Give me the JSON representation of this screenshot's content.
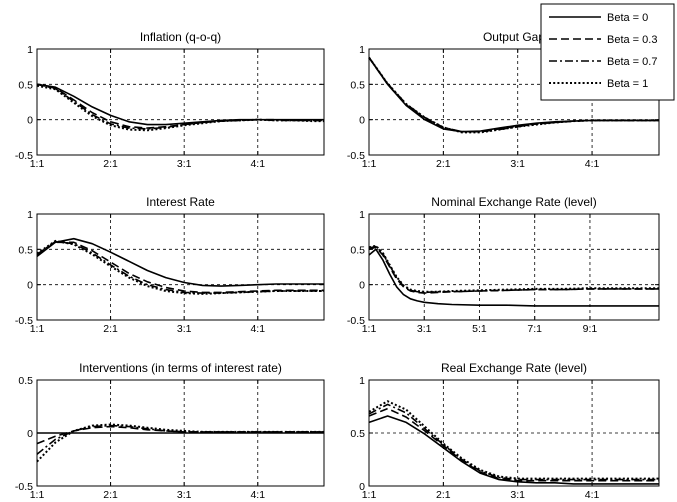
{
  "legend": {
    "placement": "top-right",
    "entries": [
      {
        "name": "Beta = 0",
        "dash": "solid"
      },
      {
        "name": "Beta = 0.3",
        "dash": "dashed"
      },
      {
        "name": "Beta = 0.7",
        "dash": "dash-dot"
      },
      {
        "name": "Beta = 1",
        "dash": "dotted"
      }
    ]
  },
  "chart_data": [
    {
      "type": "line",
      "title": "Inflation (q-o-q)",
      "xlim": [
        1,
        4.9
      ],
      "ylim": [
        -0.5,
        1
      ],
      "xticks": [
        1,
        2,
        3,
        4
      ],
      "xtick_labels": [
        "1:1",
        "2:1",
        "3:1",
        "4:1"
      ],
      "yticks": [
        -0.5,
        0,
        0.5,
        1
      ],
      "ytick_labels": [
        "-0.5",
        "0",
        "0.5",
        "1"
      ],
      "grid": "dashed",
      "x": [
        1,
        1.25,
        1.5,
        1.75,
        2,
        2.25,
        2.5,
        2.75,
        3,
        3.25,
        3.5,
        3.75,
        4,
        4.25,
        4.5,
        4.75,
        4.9
      ],
      "series": [
        {
          "name": "Beta = 0",
          "values": [
            0.5,
            0.46,
            0.33,
            0.18,
            0.06,
            -0.03,
            -0.07,
            -0.07,
            -0.05,
            -0.03,
            -0.01,
            0,
            0,
            0,
            0,
            0,
            0
          ]
        },
        {
          "name": "Beta = 0.3",
          "values": [
            0.5,
            0.45,
            0.28,
            0.1,
            -0.03,
            -0.1,
            -0.12,
            -0.1,
            -0.07,
            -0.04,
            -0.02,
            -0.01,
            0,
            0,
            -0.01,
            -0.01,
            -0.01
          ]
        },
        {
          "name": "Beta = 0.7",
          "values": [
            0.5,
            0.44,
            0.26,
            0.07,
            -0.06,
            -0.12,
            -0.13,
            -0.11,
            -0.07,
            -0.04,
            -0.02,
            -0.01,
            0,
            -0.01,
            -0.01,
            -0.01,
            -0.01
          ]
        },
        {
          "name": "Beta = 1",
          "values": [
            0.48,
            0.43,
            0.24,
            0.05,
            -0.08,
            -0.14,
            -0.15,
            -0.12,
            -0.08,
            -0.05,
            -0.02,
            -0.01,
            0,
            -0.01,
            -0.01,
            -0.02,
            -0.02
          ]
        }
      ]
    },
    {
      "type": "line",
      "title": "Output Gap",
      "xlim": [
        1,
        4.9
      ],
      "ylim": [
        -0.5,
        1
      ],
      "xticks": [
        1,
        2,
        3,
        4
      ],
      "xtick_labels": [
        "1:1",
        "2:1",
        "3:1",
        "4:1"
      ],
      "yticks": [
        -0.5,
        0,
        0.5,
        1
      ],
      "ytick_labels": [
        "-0.5",
        "0",
        "0.5",
        "1"
      ],
      "grid": "dashed",
      "x": [
        1,
        1.25,
        1.5,
        1.75,
        2,
        2.25,
        2.5,
        2.75,
        3,
        3.25,
        3.5,
        3.75,
        4,
        4.25,
        4.5,
        4.75,
        4.9
      ],
      "series": [
        {
          "name": "Beta = 0",
          "values": [
            0.88,
            0.5,
            0.2,
            0.0,
            -0.13,
            -0.17,
            -0.16,
            -0.12,
            -0.08,
            -0.05,
            -0.03,
            -0.02,
            -0.01,
            -0.01,
            -0.01,
            -0.01,
            -0.01
          ]
        },
        {
          "name": "Beta = 0.3",
          "values": [
            0.88,
            0.5,
            0.21,
            0.02,
            -0.12,
            -0.17,
            -0.17,
            -0.13,
            -0.09,
            -0.06,
            -0.04,
            -0.02,
            -0.01,
            -0.01,
            -0.01,
            -0.01,
            -0.01
          ]
        },
        {
          "name": "Beta = 0.7",
          "values": [
            0.88,
            0.51,
            0.22,
            0.03,
            -0.11,
            -0.17,
            -0.17,
            -0.14,
            -0.1,
            -0.06,
            -0.04,
            -0.02,
            -0.01,
            -0.01,
            -0.01,
            -0.01,
            -0.01
          ]
        },
        {
          "name": "Beta = 1",
          "values": [
            0.88,
            0.51,
            0.22,
            0.03,
            -0.11,
            -0.18,
            -0.18,
            -0.14,
            -0.1,
            -0.07,
            -0.04,
            -0.02,
            -0.01,
            -0.01,
            -0.01,
            -0.01,
            -0.01
          ]
        }
      ]
    },
    {
      "type": "line",
      "title": "Interest Rate",
      "xlim": [
        1,
        4.9
      ],
      "ylim": [
        -0.5,
        1
      ],
      "xticks": [
        1,
        2,
        3,
        4
      ],
      "xtick_labels": [
        "1:1",
        "2:1",
        "3:1",
        "4:1"
      ],
      "yticks": [
        -0.5,
        0,
        0.5,
        1
      ],
      "ytick_labels": [
        "-0.5",
        "0",
        "0.5",
        "1"
      ],
      "grid": "dashed",
      "x": [
        1,
        1.25,
        1.5,
        1.75,
        2,
        2.25,
        2.5,
        2.75,
        3,
        3.25,
        3.5,
        3.75,
        4,
        4.25,
        4.5,
        4.75,
        4.9
      ],
      "series": [
        {
          "name": "Beta = 0",
          "values": [
            0.4,
            0.6,
            0.65,
            0.58,
            0.46,
            0.33,
            0.2,
            0.1,
            0.03,
            -0.01,
            -0.02,
            -0.01,
            0.0,
            0.01,
            0.01,
            0.01,
            0.01
          ]
        },
        {
          "name": "Beta = 0.3",
          "values": [
            0.42,
            0.6,
            0.6,
            0.48,
            0.32,
            0.16,
            0.04,
            -0.04,
            -0.09,
            -0.11,
            -0.11,
            -0.1,
            -0.09,
            -0.08,
            -0.08,
            -0.08,
            -0.08
          ]
        },
        {
          "name": "Beta = 0.7",
          "values": [
            0.43,
            0.61,
            0.58,
            0.45,
            0.28,
            0.12,
            0.0,
            -0.07,
            -0.11,
            -0.12,
            -0.12,
            -0.11,
            -0.1,
            -0.09,
            -0.09,
            -0.09,
            -0.09
          ]
        },
        {
          "name": "Beta = 1",
          "values": [
            0.44,
            0.62,
            0.57,
            0.43,
            0.26,
            0.1,
            -0.02,
            -0.09,
            -0.12,
            -0.13,
            -0.12,
            -0.11,
            -0.1,
            -0.09,
            -0.09,
            -0.09,
            -0.09
          ]
        }
      ]
    },
    {
      "type": "line",
      "title": "Nominal Exchange Rate (level)",
      "xlim": [
        1,
        11.5
      ],
      "ylim": [
        -0.5,
        1
      ],
      "xticks": [
        1,
        3,
        5,
        7,
        9
      ],
      "xtick_labels": [
        "1:1",
        "3:1",
        "5:1",
        "7:1",
        "9:1"
      ],
      "yticks": [
        -0.5,
        0,
        0.5,
        1
      ],
      "ytick_labels": [
        "-0.5",
        "0",
        "0.5",
        "1"
      ],
      "grid": "dashed",
      "x": [
        1,
        1.25,
        1.5,
        1.75,
        2,
        2.25,
        2.5,
        2.75,
        3,
        3.5,
        4,
        5,
        6,
        7,
        8,
        9,
        10,
        11,
        11.5
      ],
      "series": [
        {
          "name": "Beta = 0",
          "values": [
            0.42,
            0.5,
            0.35,
            0.15,
            -0.03,
            -0.14,
            -0.2,
            -0.23,
            -0.25,
            -0.27,
            -0.28,
            -0.29,
            -0.29,
            -0.3,
            -0.3,
            -0.3,
            -0.3,
            -0.3,
            -0.3
          ]
        },
        {
          "name": "Beta = 0.3",
          "values": [
            0.5,
            0.53,
            0.42,
            0.25,
            0.08,
            -0.03,
            -0.09,
            -0.11,
            -0.12,
            -0.11,
            -0.1,
            -0.09,
            -0.08,
            -0.07,
            -0.07,
            -0.06,
            -0.06,
            -0.06,
            -0.06
          ]
        },
        {
          "name": "Beta = 0.7",
          "values": [
            0.52,
            0.54,
            0.44,
            0.27,
            0.1,
            -0.02,
            -0.08,
            -0.1,
            -0.11,
            -0.1,
            -0.1,
            -0.09,
            -0.08,
            -0.07,
            -0.07,
            -0.06,
            -0.06,
            -0.06,
            -0.06
          ]
        },
        {
          "name": "Beta = 1",
          "values": [
            0.53,
            0.55,
            0.45,
            0.28,
            0.11,
            -0.01,
            -0.07,
            -0.09,
            -0.1,
            -0.1,
            -0.09,
            -0.08,
            -0.07,
            -0.06,
            -0.06,
            -0.05,
            -0.05,
            -0.05,
            -0.05
          ]
        }
      ]
    },
    {
      "type": "line",
      "title": "Interventions (in terms of interest rate)",
      "xlim": [
        1,
        4.9
      ],
      "ylim": [
        -0.5,
        0.5
      ],
      "xticks": [
        1,
        2,
        3,
        4
      ],
      "xtick_labels": [
        "1:1",
        "2:1",
        "3:1",
        "4:1"
      ],
      "yticks": [
        -0.5,
        0,
        0.5
      ],
      "ytick_labels": [
        "-0.5",
        "0",
        "0.5"
      ],
      "grid": "dashed",
      "x": [
        1,
        1.25,
        1.5,
        1.75,
        2,
        2.25,
        2.5,
        2.75,
        3,
        3.25,
        3.5,
        3.75,
        4,
        4.25,
        4.5,
        4.75,
        4.9
      ],
      "series": [
        {
          "name": "Beta = 0",
          "values": [
            0,
            0,
            0,
            0,
            0,
            0,
            0,
            0,
            0,
            0,
            0,
            0,
            0,
            0,
            0,
            0,
            0
          ]
        },
        {
          "name": "Beta = 0.3",
          "values": [
            -0.1,
            -0.03,
            0.02,
            0.05,
            0.06,
            0.05,
            0.03,
            0.02,
            0.01,
            0.01,
            0.01,
            0.01,
            0.01,
            0.01,
            0.01,
            0.01,
            0.01
          ]
        },
        {
          "name": "Beta = 0.7",
          "values": [
            -0.2,
            -0.06,
            0.02,
            0.06,
            0.07,
            0.06,
            0.04,
            0.02,
            0.01,
            0.01,
            0.01,
            0.01,
            0.01,
            0.01,
            0.01,
            0.01,
            0.01
          ]
        },
        {
          "name": "Beta = 1",
          "values": [
            -0.27,
            -0.09,
            0.02,
            0.07,
            0.08,
            0.07,
            0.05,
            0.03,
            0.02,
            0.01,
            0.01,
            0.01,
            0.01,
            0.01,
            0.01,
            0.01,
            0.01
          ]
        }
      ]
    },
    {
      "type": "line",
      "title": "Real Exchange Rate (level)",
      "xlim": [
        1,
        4.9
      ],
      "ylim": [
        0,
        1
      ],
      "xticks": [
        1,
        2,
        3,
        4
      ],
      "xtick_labels": [
        "1:1",
        "2:1",
        "3:1",
        "4:1"
      ],
      "yticks": [
        0,
        0.5,
        1
      ],
      "ytick_labels": [
        "0",
        "0.5",
        "1"
      ],
      "grid": "dashed",
      "x": [
        1,
        1.25,
        1.5,
        1.75,
        2,
        2.25,
        2.5,
        2.75,
        3,
        3.25,
        3.5,
        3.75,
        4,
        4.25,
        4.5,
        4.75,
        4.9
      ],
      "series": [
        {
          "name": "Beta = 0",
          "values": [
            0.6,
            0.66,
            0.6,
            0.49,
            0.36,
            0.23,
            0.12,
            0.06,
            0.04,
            0.03,
            0.03,
            0.02,
            0.02,
            0.02,
            0.02,
            0.02,
            0.02
          ]
        },
        {
          "name": "Beta = 0.3",
          "values": [
            0.66,
            0.73,
            0.65,
            0.52,
            0.38,
            0.24,
            0.13,
            0.07,
            0.05,
            0.05,
            0.05,
            0.05,
            0.05,
            0.05,
            0.05,
            0.05,
            0.05
          ]
        },
        {
          "name": "Beta = 0.7",
          "values": [
            0.68,
            0.77,
            0.69,
            0.54,
            0.39,
            0.25,
            0.14,
            0.08,
            0.06,
            0.06,
            0.06,
            0.06,
            0.06,
            0.06,
            0.06,
            0.06,
            0.06
          ]
        },
        {
          "name": "Beta = 1",
          "values": [
            0.7,
            0.8,
            0.72,
            0.56,
            0.4,
            0.26,
            0.15,
            0.09,
            0.07,
            0.07,
            0.07,
            0.07,
            0.07,
            0.07,
            0.07,
            0.07,
            0.07
          ]
        }
      ]
    }
  ]
}
